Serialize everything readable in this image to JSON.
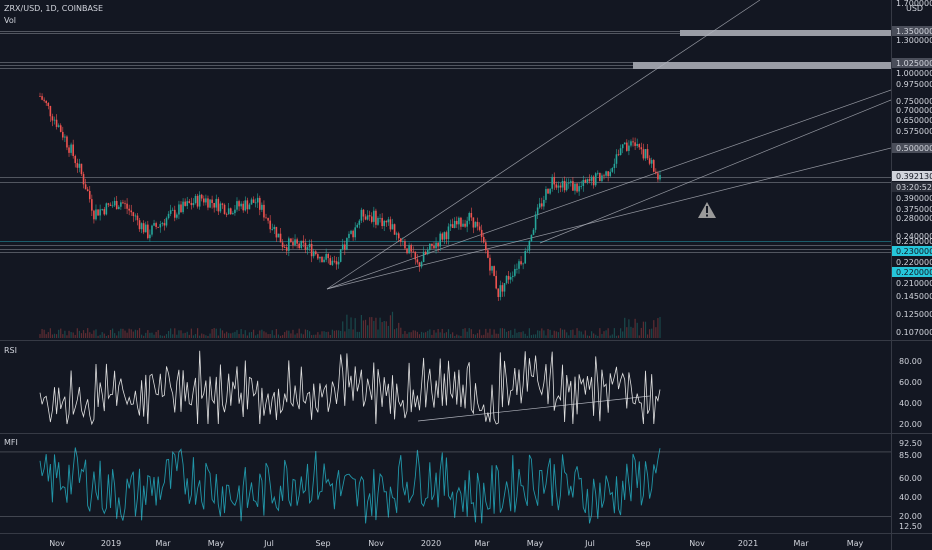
{
  "header": {
    "symbol": "ZRX/USD, 1D, COINBASE",
    "vol_label": "Vol",
    "currency": "USD"
  },
  "panes": {
    "rsi_label": "RSI",
    "mfi_label": "MFI"
  },
  "colors": {
    "background": "#131722",
    "candle_up": "#26a69a",
    "candle_down": "#ef5350",
    "rsi_line": "#e0e0e0",
    "mfi_line": "#2196a8",
    "cyan_level": "#26c6da",
    "hline": "#b2b5be"
  },
  "price_axis": {
    "labels": [
      "1.700000",
      "1.350000",
      "1.300000",
      "1.025000",
      "1.000000",
      "0.975000",
      "0.750000",
      "0.700000",
      "0.650000",
      "0.575000",
      "0.500000",
      "0.392130",
      "03:20:52",
      "0.390000",
      "0.375000",
      "0.280000",
      "0.240000",
      "0.230000",
      "0.230000",
      "0.220000",
      "0.220000",
      "0.210000",
      "0.145000",
      "0.125000",
      "0.107000"
    ],
    "current_price": "0.392130",
    "countdown": "03:20:52",
    "cyan_labels": [
      "0.230000",
      "0.220000"
    ]
  },
  "rsi_axis": [
    "80.00",
    "60.00",
    "40.00",
    "20.00"
  ],
  "mfi_axis": [
    "92.50",
    "85.00",
    "60.00",
    "40.00",
    "20.00",
    "12.50"
  ],
  "time_axis": [
    "Nov",
    "2019",
    "Mar",
    "May",
    "Jul",
    "Sep",
    "Nov",
    "2020",
    "Mar",
    "May",
    "Jul",
    "Sep",
    "Nov",
    "2021",
    "Mar",
    "May"
  ],
  "warning_icon": "warning-triangle-icon",
  "chart_data": {
    "type": "candlestick",
    "title": "ZRX/USD, 1D, COINBASE",
    "price_anchors": [
      {
        "month": "Oct 2018",
        "price": 0.82
      },
      {
        "month": "Nov 2018",
        "price": 0.55
      },
      {
        "month": "Dec 2018",
        "price": 0.3
      },
      {
        "month": "Jan 2019",
        "price": 0.33
      },
      {
        "month": "Feb 2019",
        "price": 0.25
      },
      {
        "month": "Mar 2019",
        "price": 0.3
      },
      {
        "month": "Apr 2019",
        "price": 0.34
      },
      {
        "month": "May 2019",
        "price": 0.31
      },
      {
        "month": "Jun 2019",
        "price": 0.33
      },
      {
        "month": "Jul 2019",
        "price": 0.23
      },
      {
        "month": "Aug 2019",
        "price": 0.22
      },
      {
        "month": "Sep 2019",
        "price": 0.19
      },
      {
        "month": "Oct 2019",
        "price": 0.3
      },
      {
        "month": "Nov 2019",
        "price": 0.27
      },
      {
        "month": "Dec 2019",
        "price": 0.19
      },
      {
        "month": "Jan 2020",
        "price": 0.25
      },
      {
        "month": "Feb 2020",
        "price": 0.29
      },
      {
        "month": "Mar 2020",
        "price": 0.15
      },
      {
        "month": "Apr 2020",
        "price": 0.21
      },
      {
        "month": "May 2020",
        "price": 0.4
      },
      {
        "month": "Jun 2020",
        "price": 0.37
      },
      {
        "month": "Jul 2020",
        "price": 0.42
      },
      {
        "month": "Aug 2020",
        "price": 0.58
      },
      {
        "month": "Sep 2020",
        "price": 0.392
      }
    ],
    "horizontal_levels": [
      1.35,
      1.025,
      1.0,
      0.5,
      0.392,
      0.23,
      0.22
    ],
    "rsi_range": [
      20,
      90
    ],
    "mfi_range": [
      12.5,
      92.5
    ],
    "grid": false
  }
}
